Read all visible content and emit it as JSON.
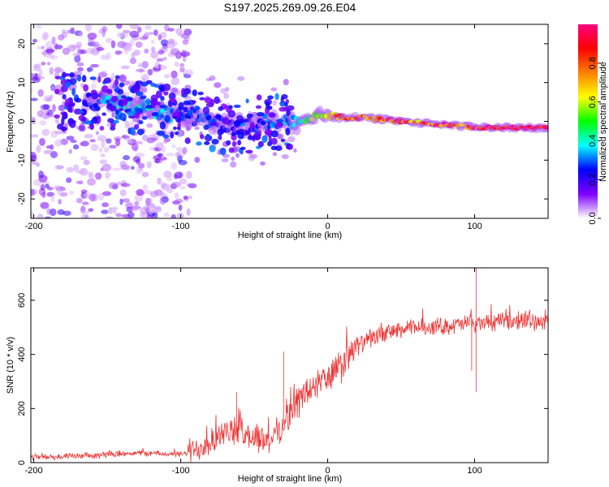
{
  "title": "S197.2025.269.09.26.E04",
  "chart_data": [
    {
      "type": "heatmap",
      "xlabel": "Height of straight line (km)",
      "ylabel": "Frequency (Hz)",
      "xlim": [
        -202,
        150
      ],
      "ylim": [
        -25,
        25
      ],
      "xticks": [
        -200,
        -100,
        0,
        100
      ],
      "yticks": [
        -20,
        -10,
        0,
        10,
        20
      ],
      "colorbar": {
        "label": "Normalized spectral amplitude",
        "range": [
          0,
          1
        ],
        "ticks": [
          "0.0",
          "0.2",
          "0.4",
          "0.6",
          "0.8"
        ],
        "colormap": [
          "#ffffff",
          "#8000ff",
          "#0000ff",
          "#00ffff",
          "#00ff00",
          "#ffff00",
          "#ff8000",
          "#ff0000",
          "#ff0080"
        ]
      },
      "ridge": {
        "x": [
          -165,
          -150,
          -140,
          -130,
          -120,
          -110,
          -100,
          -90,
          -80,
          -70,
          -60,
          -50,
          -40,
          -30,
          -20,
          -10,
          -5,
          0,
          10,
          20,
          30,
          40,
          50,
          60,
          70,
          80,
          90,
          100,
          110,
          120,
          130,
          140,
          150
        ],
        "y": [
          5,
          5,
          4.5,
          3.8,
          3,
          2,
          1.5,
          1,
          0,
          -1,
          -1.5,
          -1,
          0,
          0,
          -0.5,
          1,
          2,
          1.5,
          1,
          1,
          0.8,
          0.5,
          0,
          -0.3,
          -0.6,
          -0.8,
          -1.2,
          -1.5,
          -1.5,
          -1.6,
          -1.6,
          -1.7,
          -1.7
        ],
        "amplitude": [
          0.25,
          0.35,
          0.4,
          0.4,
          0.4,
          0.35,
          0.25,
          0.3,
          0.3,
          0.25,
          0.2,
          0.25,
          0.3,
          0.35,
          0.4,
          0.6,
          0.65,
          0.7,
          0.85,
          0.9,
          0.75,
          0.85,
          0.95,
          0.75,
          0.85,
          0.9,
          0.75,
          0.95,
          1.0,
          1.0,
          1.0,
          1.0,
          1.0
        ]
      }
    },
    {
      "type": "line",
      "xlabel": "Height of straight line (km)",
      "ylabel": "SNR (10 * v/v)",
      "xlim": [
        -202,
        150
      ],
      "ylim": [
        0,
        720
      ],
      "xticks": [
        -200,
        -100,
        0,
        100
      ],
      "yticks": [
        0,
        200,
        400,
        600
      ],
      "color": "#ee3333",
      "trend": {
        "x": [
          -202,
          -180,
          -160,
          -140,
          -120,
          -100,
          -90,
          -80,
          -70,
          -60,
          -50,
          -40,
          -30,
          -20,
          -10,
          0,
          10,
          20,
          30,
          40,
          50,
          60,
          80,
          100,
          120,
          150
        ],
        "y": [
          20,
          22,
          25,
          35,
          35,
          30,
          45,
          80,
          110,
          120,
          90,
          80,
          140,
          230,
          280,
          310,
          360,
          430,
          460,
          480,
          490,
          500,
          505,
          515,
          520,
          525
        ]
      },
      "spikes": [
        {
          "x": -62,
          "y": 260
        },
        {
          "x": -30,
          "y": 410
        },
        {
          "x": 101,
          "y": 720
        },
        {
          "x": 101,
          "y": 260
        },
        {
          "x": 98,
          "y": 340
        }
      ]
    }
  ]
}
